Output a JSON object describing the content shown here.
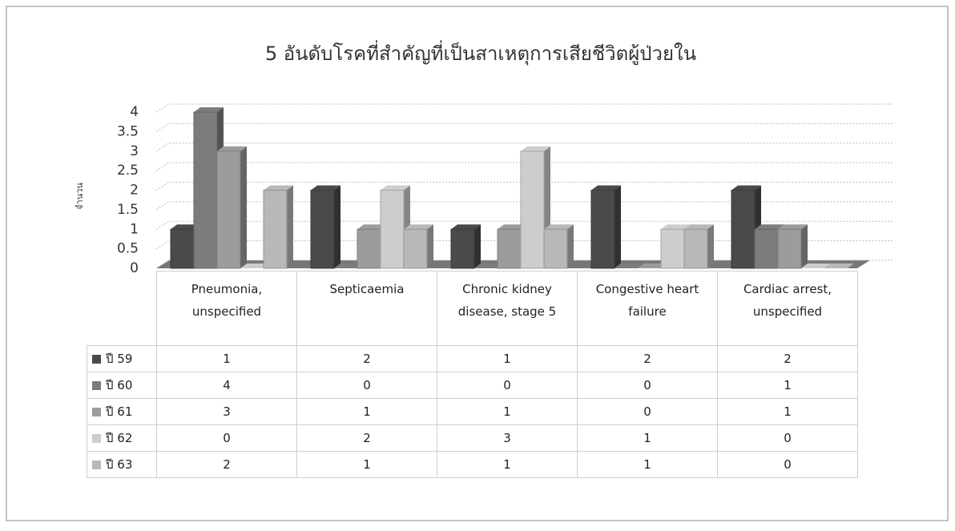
{
  "chart_data": {
    "type": "bar3d",
    "title": "5 อันดับโรคที่สำคัญที่เป็นสาเหตุการเสียชีวิตผู้ป่วยใน",
    "y_label": "จำนวน",
    "categories": [
      "Pneumonia, unspecified",
      "Septicaemia",
      "Chronic kidney disease, stage 5",
      "Congestive heart failure",
      "Cardiac arrest, unspecified"
    ],
    "series": [
      {
        "name": "ปี 59",
        "color": "#4a4a4a",
        "values": [
          1,
          2,
          1,
          2,
          2
        ]
      },
      {
        "name": "ปี 60",
        "color": "#7c7c7c",
        "values": [
          4,
          0,
          0,
          0,
          1
        ]
      },
      {
        "name": "ปี 61",
        "color": "#9c9c9c",
        "values": [
          3,
          1,
          1,
          0,
          1
        ]
      },
      {
        "name": "ปี 62",
        "color": "#cdcdcd",
        "values": [
          0,
          2,
          3,
          1,
          0
        ]
      },
      {
        "name": "ปี 63",
        "color": "#b8b8b8",
        "values": [
          2,
          1,
          1,
          1,
          0
        ]
      }
    ],
    "ylim": [
      0,
      4
    ],
    "yticks": [
      0,
      0.5,
      1,
      1.5,
      2,
      2.5,
      3,
      3.5,
      4
    ],
    "grid": true,
    "data_table": true
  }
}
